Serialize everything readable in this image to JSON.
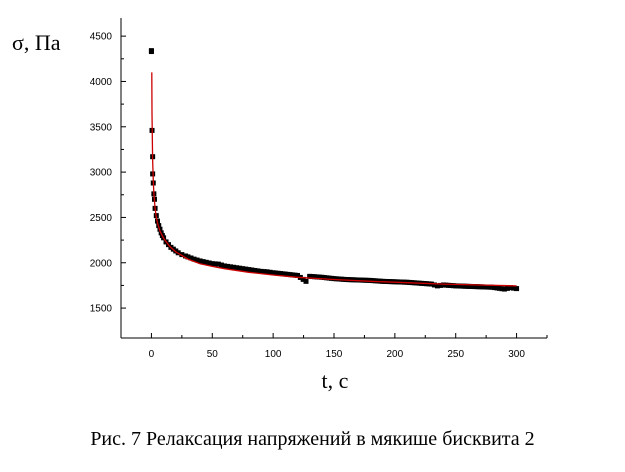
{
  "caption": "Рис. 7 Релаксация напряжений в мякише бисквита 2",
  "colors": {
    "points": "#000000",
    "fit": "#cc0000",
    "axis": "#000000"
  },
  "chart_data": {
    "type": "scatter",
    "xlabel": "t, c",
    "ylabel": "σ, Па",
    "xlim": [
      -25,
      325
    ],
    "ylim": [
      1170,
      4700
    ],
    "xticks": [
      0,
      50,
      100,
      150,
      200,
      250,
      300
    ],
    "yticks": [
      1500,
      2000,
      2500,
      3000,
      3500,
      4000,
      4500
    ],
    "grid": false,
    "series": [
      {
        "kind": "points",
        "marker": "square",
        "x": [
          0,
          0,
          0.5,
          1,
          1,
          1.5,
          2,
          2.5,
          3,
          4,
          5,
          6,
          7,
          8,
          9,
          10,
          12,
          14,
          16,
          18,
          20,
          22,
          25,
          28,
          30,
          35,
          40,
          45,
          50,
          55,
          60,
          65,
          70,
          75,
          80,
          85,
          90,
          95,
          100,
          110,
          120,
          127,
          130,
          140,
          150,
          160,
          170,
          180,
          190,
          200,
          210,
          220,
          230,
          235,
          240,
          250,
          260,
          270,
          280,
          290,
          295,
          300
        ],
        "y": [
          4340,
          4330,
          3460,
          3170,
          2980,
          2880,
          2760,
          2700,
          2600,
          2520,
          2460,
          2410,
          2370,
          2330,
          2300,
          2275,
          2230,
          2200,
          2170,
          2150,
          2130,
          2110,
          2090,
          2075,
          2065,
          2040,
          2020,
          2005,
          1990,
          1985,
          1965,
          1955,
          1945,
          1935,
          1925,
          1915,
          1905,
          1900,
          1890,
          1875,
          1860,
          1795,
          1850,
          1840,
          1825,
          1815,
          1810,
          1805,
          1795,
          1790,
          1785,
          1775,
          1765,
          1745,
          1755,
          1745,
          1740,
          1735,
          1730,
          1710,
          1725,
          1715
        ]
      },
      {
        "kind": "fit",
        "x": [
          0.3,
          0.5,
          1,
          1.5,
          2,
          3,
          4,
          5,
          7,
          10,
          15,
          20,
          30,
          40,
          50,
          60,
          80,
          100,
          120,
          150,
          180,
          210,
          240,
          270,
          300
        ],
        "y": [
          4100,
          3650,
          3150,
          2900,
          2760,
          2600,
          2500,
          2440,
          2350,
          2270,
          2180,
          2120,
          2040,
          1990,
          1960,
          1935,
          1895,
          1865,
          1840,
          1815,
          1795,
          1780,
          1765,
          1755,
          1745
        ]
      }
    ]
  }
}
